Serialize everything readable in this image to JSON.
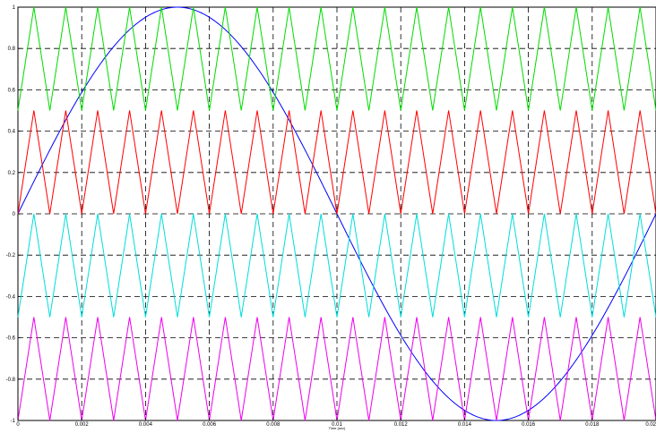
{
  "chart_data": {
    "type": "line",
    "title": "",
    "xlabel": "Time (sec)",
    "ylabel": "",
    "xlim": [
      0,
      0.02
    ],
    "ylim": [
      -1,
      1
    ],
    "grid": true,
    "grid_style": "dashed",
    "x_ticks": [
      0,
      0.002,
      0.004,
      0.006,
      0.008,
      0.01,
      0.012,
      0.014,
      0.016,
      0.018,
      0.02
    ],
    "x_tick_labels": [
      "0",
      "0.002",
      "0.004",
      "0.006",
      "0.008",
      "0.01",
      "0.012",
      "0.014",
      "0.016",
      "0.018",
      "0.02"
    ],
    "y_ticks": [
      -1,
      -0.8,
      -0.6,
      -0.4,
      -0.2,
      0,
      0.2,
      0.4,
      0.6,
      0.8,
      1
    ],
    "y_tick_labels": [
      "-1",
      "-0.8",
      "-0.6",
      "-0.4",
      "-0.2",
      "0",
      "0.2",
      "0.4",
      "0.6",
      "0.8",
      "1"
    ],
    "series": [
      {
        "kind": "sine",
        "amplitude": 1,
        "frequency_hz": 50,
        "offset": 0,
        "color": "#0000ff"
      },
      {
        "kind": "triangle",
        "min": 0.5,
        "max": 1,
        "frequency_hz": 1000,
        "color": "#00dd00"
      },
      {
        "kind": "triangle",
        "min": 0,
        "max": 0.5,
        "frequency_hz": 1000,
        "color": "#ff0000"
      },
      {
        "kind": "triangle",
        "min": -0.5,
        "max": 0,
        "frequency_hz": 1000,
        "color": "#00dddd"
      },
      {
        "kind": "triangle",
        "min": -1,
        "max": -0.5,
        "frequency_hz": 1000,
        "color": "#ee00ee"
      }
    ]
  }
}
